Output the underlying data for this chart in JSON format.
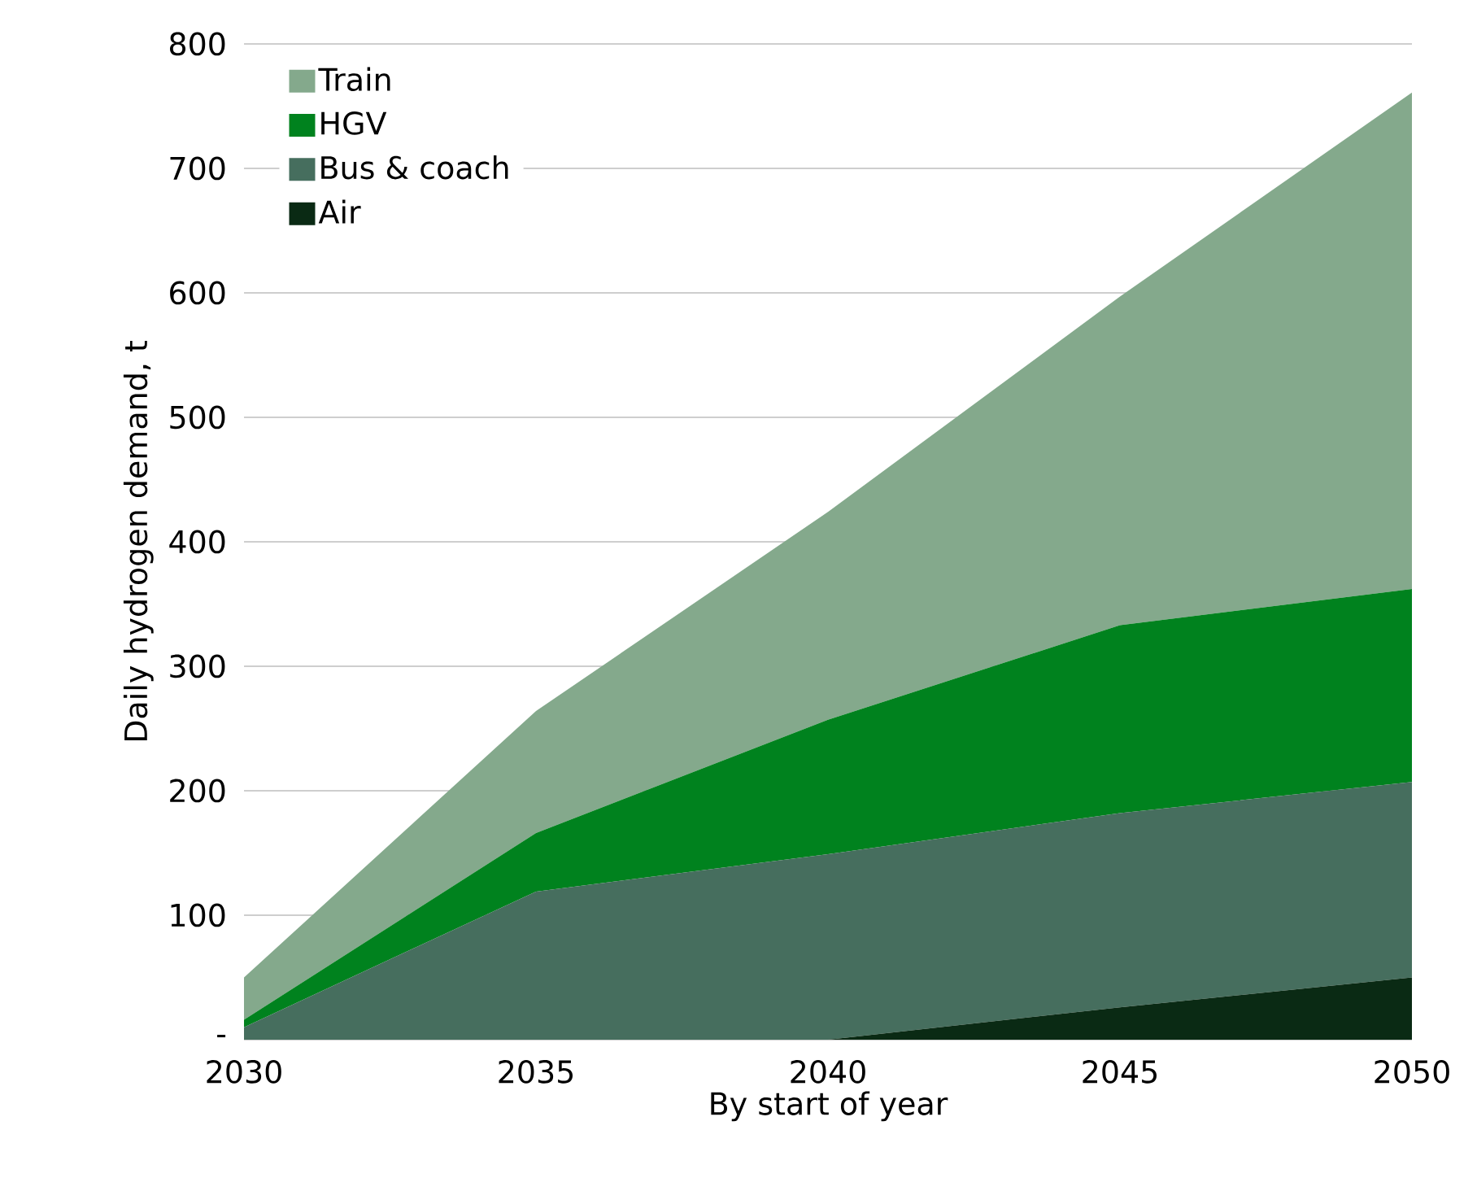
{
  "chart_data": {
    "type": "area",
    "stacked": true,
    "xlabel": "By start of year",
    "ylabel": "Daily hydrogen demand, t",
    "x": [
      2030,
      2035,
      2040,
      2045,
      2050
    ],
    "series": [
      {
        "name": "Air",
        "color": "#0a2a14",
        "values": [
          0,
          0,
          0,
          26,
          50
        ]
      },
      {
        "name": "Bus & coach",
        "color": "#466e5e",
        "values": [
          10,
          119,
          149,
          156,
          157
        ]
      },
      {
        "name": "HGV",
        "color": "#00821e",
        "values": [
          6,
          47,
          108,
          151,
          155
        ]
      },
      {
        "name": "Train",
        "color": "#84a98c",
        "values": [
          34,
          98,
          167,
          264,
          399
        ]
      }
    ],
    "xlim": [
      2030,
      2050
    ],
    "xticks": [
      2030,
      2035,
      2040,
      2045,
      2050
    ],
    "ylim": [
      0,
      800
    ],
    "yticks": [
      {
        "value": 0,
        "label": "-"
      },
      100,
      200,
      300,
      400,
      500,
      600,
      700,
      800
    ],
    "grid": "y",
    "legend": "top left"
  }
}
